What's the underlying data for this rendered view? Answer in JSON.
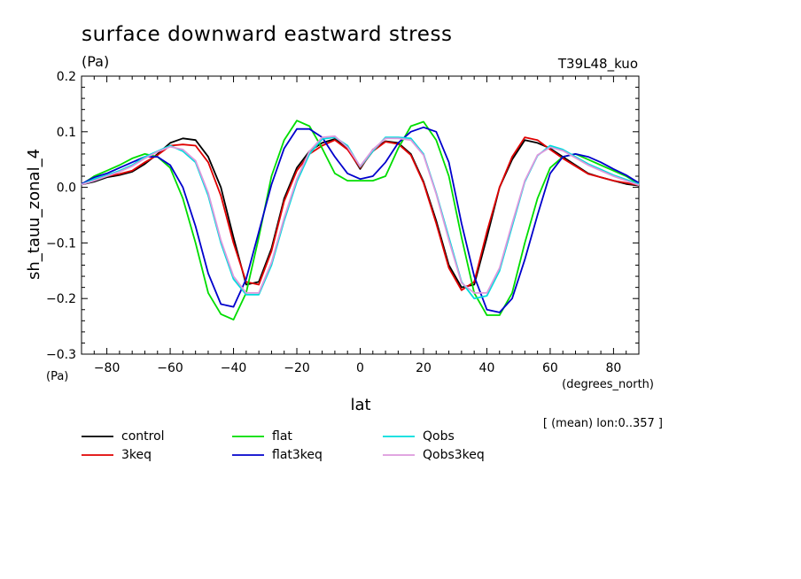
{
  "chart_data": {
    "type": "line",
    "title": "surface downward eastward stress",
    "title_units": "(Pa)",
    "run_label": "T39L48_kuo",
    "ylabel": "sh_tauu_zonal_4",
    "y_units": "(Pa)",
    "xlabel": "lat",
    "x_units": "(degrees_north)",
    "footnote": "[ (mean) lon:0..357 ]",
    "xlim": [
      -88,
      88
    ],
    "ylim": [
      -0.3,
      0.2
    ],
    "x_ticks": [
      -80,
      -60,
      -40,
      -20,
      0,
      20,
      40,
      60,
      80
    ],
    "x_tick_labels": [
      "−80",
      "−60",
      "−40",
      "−20",
      "0",
      "20",
      "40",
      "60",
      "80"
    ],
    "y_ticks": [
      -0.3,
      -0.2,
      -0.1,
      0.0,
      0.1,
      0.2
    ],
    "y_tick_labels": [
      "−0.3",
      "−0.2",
      "−0.1",
      "0.0",
      "0.1",
      "0.2"
    ],
    "x": [
      -88,
      -84,
      -80,
      -76,
      -72,
      -68,
      -64,
      -60,
      -56,
      -52,
      -48,
      -44,
      -40,
      -36,
      -32,
      -28,
      -24,
      -20,
      -16,
      -12,
      -8,
      -4,
      0,
      4,
      8,
      12,
      16,
      20,
      24,
      28,
      32,
      36,
      40,
      44,
      48,
      52,
      56,
      60,
      64,
      68,
      72,
      76,
      80,
      84,
      88
    ],
    "series": [
      {
        "name": "control",
        "color": "#000000",
        "values": [
          0.005,
          0.01,
          0.018,
          0.022,
          0.028,
          0.042,
          0.06,
          0.08,
          0.088,
          0.085,
          0.055,
          0.0,
          -0.09,
          -0.175,
          -0.17,
          -0.11,
          -0.02,
          0.035,
          0.065,
          0.08,
          0.087,
          0.07,
          0.033,
          0.068,
          0.083,
          0.08,
          0.06,
          0.01,
          -0.06,
          -0.14,
          -0.18,
          -0.175,
          -0.09,
          0.0,
          0.05,
          0.085,
          0.08,
          0.07,
          0.055,
          0.04,
          0.025,
          0.018,
          0.012,
          0.006,
          0.003
        ]
      },
      {
        "name": "3keq",
        "color": "#e00000",
        "values": [
          0.006,
          0.015,
          0.02,
          0.024,
          0.03,
          0.045,
          0.058,
          0.075,
          0.077,
          0.075,
          0.045,
          -0.015,
          -0.1,
          -0.17,
          -0.175,
          -0.115,
          -0.025,
          0.03,
          0.06,
          0.075,
          0.085,
          0.068,
          0.035,
          0.065,
          0.082,
          0.078,
          0.058,
          0.008,
          -0.065,
          -0.145,
          -0.185,
          -0.17,
          -0.08,
          0.0,
          0.055,
          0.09,
          0.085,
          0.068,
          0.052,
          0.038,
          0.024,
          0.018,
          0.012,
          0.008,
          0.004
        ]
      },
      {
        "name": "flat",
        "color": "#00dd00",
        "values": [
          0.005,
          0.02,
          0.03,
          0.04,
          0.052,
          0.06,
          0.055,
          0.035,
          -0.02,
          -0.1,
          -0.19,
          -0.228,
          -0.238,
          -0.19,
          -0.09,
          0.02,
          0.085,
          0.12,
          0.11,
          0.07,
          0.025,
          0.012,
          0.012,
          0.012,
          0.02,
          0.07,
          0.11,
          0.118,
          0.085,
          0.02,
          -0.09,
          -0.19,
          -0.23,
          -0.23,
          -0.19,
          -0.1,
          -0.02,
          0.035,
          0.055,
          0.06,
          0.05,
          0.04,
          0.03,
          0.02,
          0.006
        ]
      },
      {
        "name": "flat3keq",
        "color": "#0000cc",
        "values": [
          0.006,
          0.018,
          0.025,
          0.035,
          0.045,
          0.055,
          0.055,
          0.04,
          0.0,
          -0.07,
          -0.155,
          -0.21,
          -0.215,
          -0.165,
          -0.08,
          0.005,
          0.07,
          0.105,
          0.105,
          0.09,
          0.055,
          0.025,
          0.015,
          0.02,
          0.045,
          0.08,
          0.1,
          0.108,
          0.1,
          0.045,
          -0.065,
          -0.16,
          -0.22,
          -0.225,
          -0.2,
          -0.13,
          -0.05,
          0.025,
          0.055,
          0.06,
          0.055,
          0.045,
          0.033,
          0.022,
          0.008
        ]
      },
      {
        "name": "Qobs",
        "color": "#00dddd",
        "values": [
          0.005,
          0.015,
          0.022,
          0.03,
          0.04,
          0.055,
          0.065,
          0.075,
          0.065,
          0.045,
          -0.015,
          -0.1,
          -0.165,
          -0.193,
          -0.193,
          -0.14,
          -0.06,
          0.01,
          0.06,
          0.087,
          0.09,
          0.075,
          0.037,
          0.065,
          0.09,
          0.09,
          0.088,
          0.06,
          -0.01,
          -0.09,
          -0.17,
          -0.2,
          -0.195,
          -0.15,
          -0.07,
          0.01,
          0.057,
          0.075,
          0.068,
          0.055,
          0.042,
          0.032,
          0.022,
          0.014,
          0.006
        ]
      },
      {
        "name": "Qobs3keq",
        "color": "#dd99dd",
        "values": [
          0.005,
          0.012,
          0.02,
          0.028,
          0.038,
          0.052,
          0.064,
          0.073,
          0.068,
          0.048,
          -0.01,
          -0.095,
          -0.16,
          -0.19,
          -0.19,
          -0.135,
          -0.055,
          0.015,
          0.065,
          0.09,
          0.092,
          0.072,
          0.038,
          0.068,
          0.088,
          0.088,
          0.085,
          0.058,
          -0.012,
          -0.095,
          -0.172,
          -0.19,
          -0.19,
          -0.145,
          -0.065,
          0.012,
          0.058,
          0.072,
          0.066,
          0.053,
          0.04,
          0.03,
          0.02,
          0.012,
          0.004
        ]
      }
    ],
    "legend_placement": "bottom",
    "grid": false
  }
}
